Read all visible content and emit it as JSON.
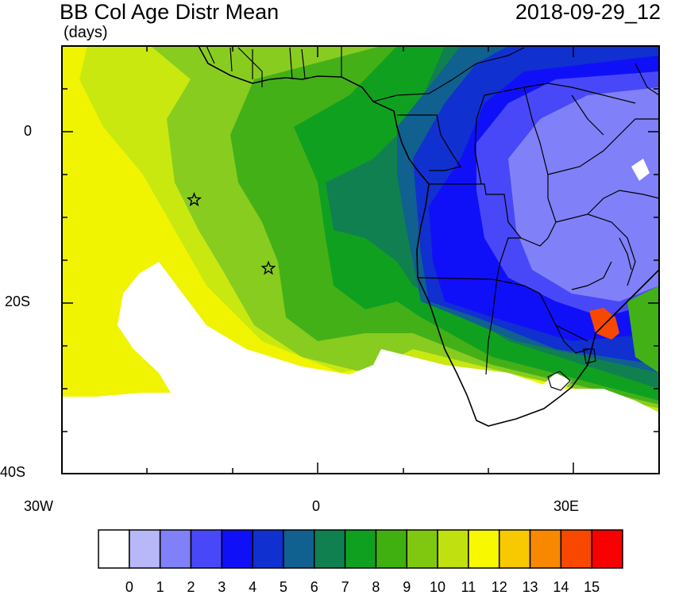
{
  "title": "BB Col Age Distr Mean",
  "units": "(days)",
  "datetime": "2018-09-29_12",
  "axes": {
    "lat_labels": [
      "0",
      "20S",
      "40S"
    ],
    "lon_labels": [
      "30W",
      "0",
      "30E"
    ]
  },
  "markers": [
    {
      "name": "star-marker-1",
      "lon": -14.5,
      "lat": -8.0
    },
    {
      "name": "star-marker-2",
      "lon": -5.8,
      "lat": -16.0
    }
  ],
  "colorbar": {
    "labels": [
      "0",
      "1",
      "2",
      "3",
      "4",
      "5",
      "6",
      "7",
      "8",
      "9",
      "10",
      "11",
      "12",
      "13",
      "14",
      "15"
    ],
    "colors": [
      "#ffffff",
      "#b8b8f8",
      "#8080f8",
      "#4848f8",
      "#1010f8",
      "#1030d0",
      "#106090",
      "#108050",
      "#10a020",
      "#40b010",
      "#80c810",
      "#c0e010",
      "#f8f800",
      "#f8c800",
      "#f88800",
      "#f84800",
      "#f80000"
    ]
  },
  "legend_colors": {
    "ocean_white": "#ffffff",
    "coast": "#000000"
  }
}
